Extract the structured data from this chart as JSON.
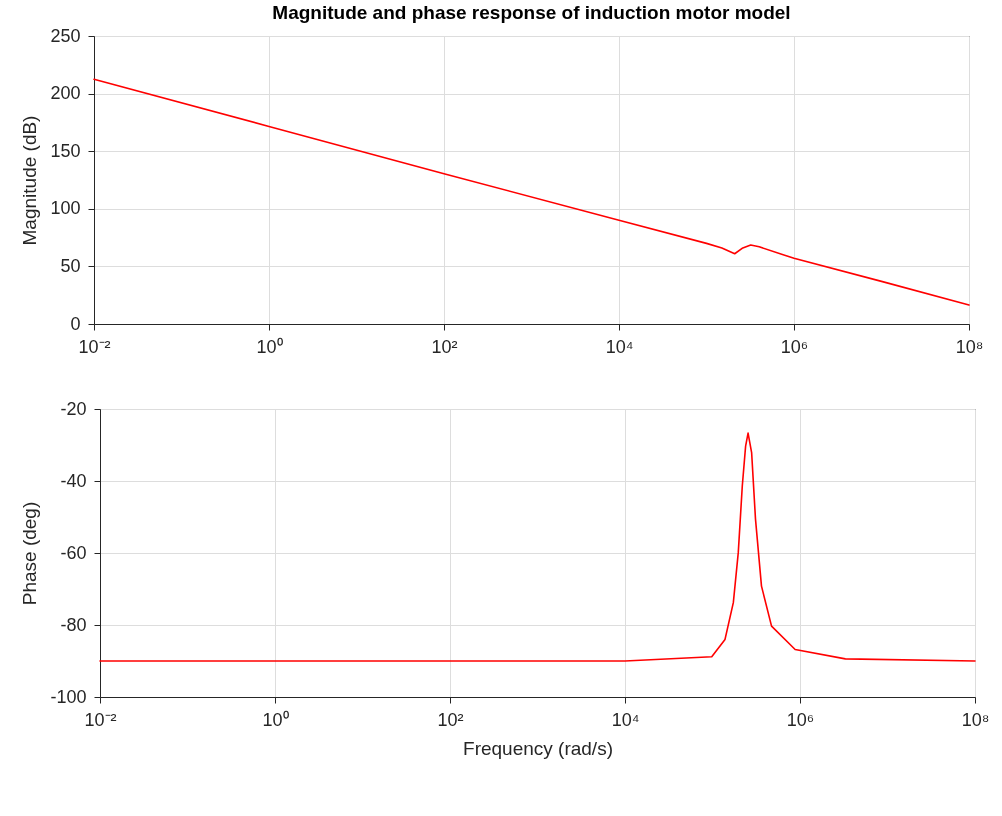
{
  "chart_data": [
    {
      "type": "line",
      "title": "Magnitude and phase response of induction motor model",
      "ylabel": "Magnitude (dB)",
      "log": "x",
      "grid": true,
      "x": [
        0.01,
        1,
        100,
        10000,
        100000,
        150000,
        210000,
        260000,
        320000,
        400000,
        1000000,
        10000000,
        100000000
      ],
      "series": [
        {
          "color": "#ff0000",
          "values": [
            212.5,
            171.5,
            130.5,
            90,
            70,
            66,
            61,
            66,
            68.5,
            67,
            57,
            37,
            16.5
          ]
        }
      ],
      "xlim": [
        0.01,
        100000000
      ],
      "ylim": [
        0,
        250
      ],
      "xticks": [
        {
          "value": 0.01,
          "label": "10⁻²"
        },
        {
          "value": 1,
          "label": "10⁰"
        },
        {
          "value": 100,
          "label": "10²"
        },
        {
          "value": 10000,
          "label": "10⁴"
        },
        {
          "value": 1000000,
          "label": "10⁶"
        },
        {
          "value": 100000000,
          "label": "10⁸"
        }
      ],
      "yticks": [
        0,
        50,
        100,
        150,
        200,
        250
      ]
    },
    {
      "type": "line",
      "xlabel": "Frequency (rad/s)",
      "ylabel": "Phase (deg)",
      "log": "x",
      "grid": true,
      "x": [
        0.01,
        10000,
        98000,
        139000,
        173000,
        197000,
        219000,
        239000,
        255000,
        280000,
        310000,
        363000,
        473000,
        880000,
        3300000,
        100000000
      ],
      "series": [
        {
          "color": "#ff0000",
          "values": [
            -90,
            -90,
            -88.8,
            -84,
            -73.8,
            -59.9,
            -41.4,
            -30.3,
            -26.7,
            -32.1,
            -50.6,
            -69.2,
            -80.3,
            -86.8,
            -89.4,
            -90
          ]
        }
      ],
      "xlim": [
        0.01,
        100000000
      ],
      "ylim": [
        -100,
        -20
      ],
      "xticks": [
        {
          "value": 0.01,
          "label": "10⁻²"
        },
        {
          "value": 1,
          "label": "10⁰"
        },
        {
          "value": 100,
          "label": "10²"
        },
        {
          "value": 10000,
          "label": "10⁴"
        },
        {
          "value": 1000000,
          "label": "10⁶"
        },
        {
          "value": 100000000,
          "label": "10⁸"
        }
      ],
      "yticks": [
        -100,
        -80,
        -60,
        -40,
        -20
      ]
    }
  ]
}
